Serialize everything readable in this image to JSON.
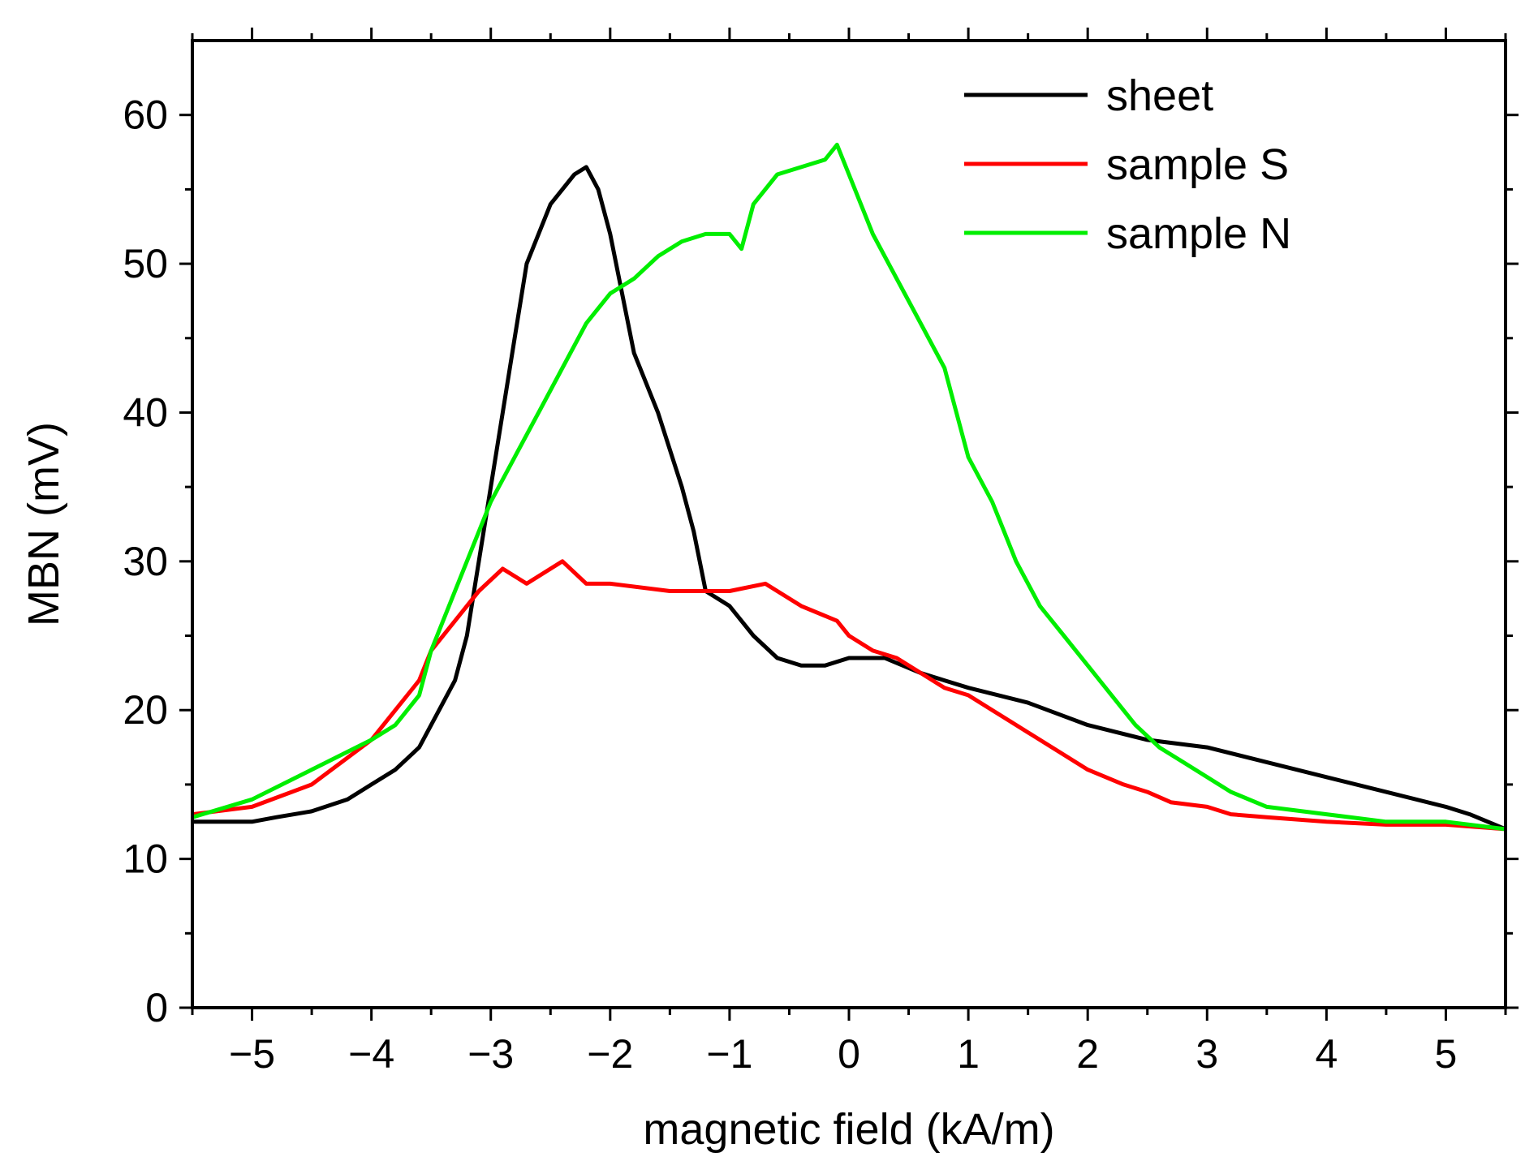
{
  "chart_data": {
    "type": "line",
    "title": "",
    "xlabel": "magnetic field (kA/m)",
    "ylabel": "MBN (mV)",
    "xlim": [
      -5.5,
      5.5
    ],
    "ylim": [
      0,
      65
    ],
    "xticks": [
      -5,
      -4,
      -3,
      -2,
      -1,
      0,
      1,
      2,
      3,
      4,
      5
    ],
    "xtick_labels": [
      "−5",
      "−4",
      "−3",
      "−2",
      "−1",
      "0",
      "1",
      "2",
      "3",
      "4",
      "5"
    ],
    "yticks": [
      0,
      10,
      20,
      30,
      40,
      50,
      60
    ],
    "ytick_labels": [
      "0",
      "10",
      "20",
      "30",
      "40",
      "50",
      "60"
    ],
    "grid": false,
    "legend_position": "top-right",
    "series": [
      {
        "name": "sheet",
        "color": "#000000",
        "points": [
          [
            -5.5,
            12.5
          ],
          [
            -5.0,
            12.5
          ],
          [
            -4.8,
            12.8
          ],
          [
            -4.5,
            13.2
          ],
          [
            -4.2,
            14.0
          ],
          [
            -4.0,
            15.0
          ],
          [
            -3.8,
            16.0
          ],
          [
            -3.6,
            17.5
          ],
          [
            -3.5,
            19.0
          ],
          [
            -3.3,
            22.0
          ],
          [
            -3.2,
            25.0
          ],
          [
            -3.1,
            30.0
          ],
          [
            -3.0,
            35.0
          ],
          [
            -2.9,
            40.0
          ],
          [
            -2.8,
            45.0
          ],
          [
            -2.7,
            50.0
          ],
          [
            -2.5,
            54.0
          ],
          [
            -2.3,
            56.0
          ],
          [
            -2.2,
            56.5
          ],
          [
            -2.1,
            55.0
          ],
          [
            -2.0,
            52.0
          ],
          [
            -1.9,
            48.0
          ],
          [
            -1.8,
            44.0
          ],
          [
            -1.6,
            40.0
          ],
          [
            -1.4,
            35.0
          ],
          [
            -1.3,
            32.0
          ],
          [
            -1.2,
            28.0
          ],
          [
            -1.0,
            27.0
          ],
          [
            -0.8,
            25.0
          ],
          [
            -0.6,
            23.5
          ],
          [
            -0.4,
            23.0
          ],
          [
            -0.2,
            23.0
          ],
          [
            0.0,
            23.5
          ],
          [
            0.3,
            23.5
          ],
          [
            0.6,
            22.5
          ],
          [
            0.8,
            22.0
          ],
          [
            1.0,
            21.5
          ],
          [
            1.5,
            20.5
          ],
          [
            2.0,
            19.0
          ],
          [
            2.5,
            18.0
          ],
          [
            3.0,
            17.5
          ],
          [
            3.5,
            16.5
          ],
          [
            4.0,
            15.5
          ],
          [
            4.5,
            14.5
          ],
          [
            5.0,
            13.5
          ],
          [
            5.2,
            13.0
          ],
          [
            5.5,
            12.0
          ]
        ]
      },
      {
        "name": "sample S",
        "color": "#ff0000",
        "points": [
          [
            -5.5,
            13.0
          ],
          [
            -5.0,
            13.5
          ],
          [
            -4.5,
            15.0
          ],
          [
            -4.0,
            18.0
          ],
          [
            -3.8,
            20.0
          ],
          [
            -3.6,
            22.0
          ],
          [
            -3.5,
            24.0
          ],
          [
            -3.3,
            26.0
          ],
          [
            -3.1,
            28.0
          ],
          [
            -2.9,
            29.5
          ],
          [
            -2.7,
            28.5
          ],
          [
            -2.4,
            30.0
          ],
          [
            -2.2,
            28.5
          ],
          [
            -2.0,
            28.5
          ],
          [
            -1.5,
            28.0
          ],
          [
            -1.0,
            28.0
          ],
          [
            -0.7,
            28.5
          ],
          [
            -0.4,
            27.0
          ],
          [
            -0.1,
            26.0
          ],
          [
            0.0,
            25.0
          ],
          [
            0.2,
            24.0
          ],
          [
            0.4,
            23.5
          ],
          [
            0.6,
            22.5
          ],
          [
            0.8,
            21.5
          ],
          [
            1.0,
            21.0
          ],
          [
            1.2,
            20.0
          ],
          [
            1.5,
            18.5
          ],
          [
            1.8,
            17.0
          ],
          [
            2.0,
            16.0
          ],
          [
            2.3,
            15.0
          ],
          [
            2.5,
            14.5
          ],
          [
            2.7,
            13.8
          ],
          [
            3.0,
            13.5
          ],
          [
            3.2,
            13.0
          ],
          [
            3.5,
            12.8
          ],
          [
            4.0,
            12.5
          ],
          [
            4.5,
            12.3
          ],
          [
            5.0,
            12.3
          ],
          [
            5.5,
            12.0
          ]
        ]
      },
      {
        "name": "sample N",
        "color": "#00ee00",
        "points": [
          [
            -5.5,
            12.8
          ],
          [
            -5.0,
            14.0
          ],
          [
            -4.5,
            16.0
          ],
          [
            -4.0,
            18.0
          ],
          [
            -3.8,
            19.0
          ],
          [
            -3.6,
            21.0
          ],
          [
            -3.5,
            24.0
          ],
          [
            -3.4,
            26.0
          ],
          [
            -3.2,
            30.0
          ],
          [
            -3.0,
            34.0
          ],
          [
            -2.8,
            37.0
          ],
          [
            -2.6,
            40.0
          ],
          [
            -2.4,
            43.0
          ],
          [
            -2.2,
            46.0
          ],
          [
            -2.0,
            48.0
          ],
          [
            -1.8,
            49.0
          ],
          [
            -1.6,
            50.5
          ],
          [
            -1.4,
            51.5
          ],
          [
            -1.2,
            52.0
          ],
          [
            -1.0,
            52.0
          ],
          [
            -0.9,
            51.0
          ],
          [
            -0.8,
            54.0
          ],
          [
            -0.6,
            56.0
          ],
          [
            -0.4,
            56.5
          ],
          [
            -0.2,
            57.0
          ],
          [
            -0.1,
            58.0
          ],
          [
            0.0,
            56.0
          ],
          [
            0.1,
            54.0
          ],
          [
            0.2,
            52.0
          ],
          [
            0.4,
            49.0
          ],
          [
            0.6,
            46.0
          ],
          [
            0.8,
            43.0
          ],
          [
            0.9,
            40.0
          ],
          [
            1.0,
            37.0
          ],
          [
            1.2,
            34.0
          ],
          [
            1.4,
            30.0
          ],
          [
            1.6,
            27.0
          ],
          [
            1.8,
            25.0
          ],
          [
            2.0,
            23.0
          ],
          [
            2.2,
            21.0
          ],
          [
            2.4,
            19.0
          ],
          [
            2.6,
            17.5
          ],
          [
            2.8,
            16.5
          ],
          [
            3.0,
            15.5
          ],
          [
            3.2,
            14.5
          ],
          [
            3.5,
            13.5
          ],
          [
            4.0,
            13.0
          ],
          [
            4.5,
            12.5
          ],
          [
            5.0,
            12.5
          ],
          [
            5.5,
            12.0
          ]
        ]
      }
    ]
  }
}
